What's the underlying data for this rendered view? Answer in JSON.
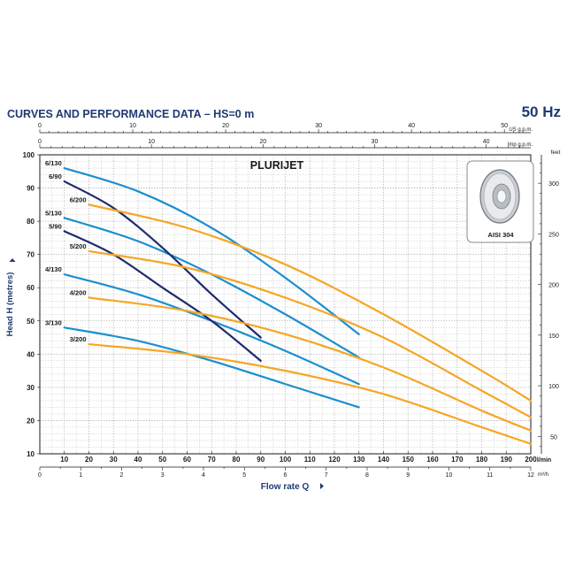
{
  "header": {
    "title": "CURVES AND PERFORMANCE DATA  –  HS=0 m",
    "frequency": "50 Hz"
  },
  "colors": {
    "title": "#1f3a73",
    "curve_130": "#1a8fd0",
    "curve_90": "#1f2a6e",
    "curve_200": "#f5a623",
    "grid": "#b5b5b5",
    "axis": "#1a1a1a"
  },
  "chart_data": {
    "type": "line",
    "title": "PLURIJET",
    "grid": true,
    "inset_label": "AISI 304",
    "inset_icon": "impeller-icon",
    "x_axis": {
      "label": "Flow rate Q",
      "unit": "l/min",
      "range": [
        0,
        200
      ],
      "ticks": [
        10,
        20,
        30,
        40,
        50,
        60,
        70,
        80,
        90,
        100,
        110,
        120,
        130,
        140,
        150,
        160,
        170,
        180,
        190,
        200
      ]
    },
    "y_axis": {
      "label": "Head H (metres)",
      "range": [
        10,
        100
      ],
      "ticks": [
        10,
        20,
        30,
        40,
        50,
        60,
        70,
        80,
        90,
        100
      ]
    },
    "secondary_axes": {
      "top": {
        "unit": "US g.p.m.",
        "ticks": [
          0,
          10,
          20,
          30,
          40,
          50
        ]
      },
      "top_imp": {
        "unit": "Imp g.p.m.",
        "ticks": [
          0,
          10,
          20,
          30,
          40
        ]
      },
      "bottom": {
        "unit": "m³/h",
        "ticks": [
          0,
          1,
          2,
          3,
          4,
          5,
          6,
          7,
          8,
          9,
          10,
          11,
          12
        ]
      },
      "right": {
        "unit": "feet",
        "ticks": [
          50,
          100,
          150,
          200,
          250,
          300
        ]
      }
    },
    "series": [
      {
        "name": "6/130",
        "family": "130",
        "x": [
          10,
          40,
          70,
          100,
          130
        ],
        "y": [
          96,
          89,
          78,
          63,
          46
        ]
      },
      {
        "name": "5/130",
        "family": "130",
        "x": [
          10,
          40,
          70,
          100,
          130
        ],
        "y": [
          81,
          74,
          64,
          52,
          39
        ]
      },
      {
        "name": "4/130",
        "family": "130",
        "x": [
          10,
          40,
          70,
          100,
          130
        ],
        "y": [
          64,
          58,
          50,
          41,
          31
        ]
      },
      {
        "name": "3/130",
        "family": "130",
        "x": [
          10,
          40,
          70,
          100,
          130
        ],
        "y": [
          48,
          44,
          38,
          31,
          24
        ]
      },
      {
        "name": "6/90",
        "family": "90",
        "x": [
          10,
          30,
          50,
          70,
          90
        ],
        "y": [
          92,
          84,
          72,
          58,
          45
        ]
      },
      {
        "name": "5/90",
        "family": "90",
        "x": [
          10,
          30,
          50,
          70,
          90
        ],
        "y": [
          77,
          70,
          60,
          50,
          38
        ]
      },
      {
        "name": "6/200",
        "family": "200",
        "x": [
          20,
          60,
          100,
          140,
          180,
          200
        ],
        "y": [
          85,
          78,
          67,
          52,
          35,
          26
        ]
      },
      {
        "name": "5/200",
        "family": "200",
        "x": [
          20,
          60,
          100,
          140,
          180,
          200
        ],
        "y": [
          71,
          66,
          57,
          45,
          29,
          21
        ]
      },
      {
        "name": "4/200",
        "family": "200",
        "x": [
          20,
          60,
          100,
          140,
          180,
          200
        ],
        "y": [
          57,
          53,
          46,
          36,
          23,
          17
        ]
      },
      {
        "name": "3/200",
        "family": "200",
        "x": [
          20,
          60,
          100,
          140,
          180,
          200
        ],
        "y": [
          43,
          40,
          35,
          28,
          18,
          13
        ]
      }
    ]
  }
}
